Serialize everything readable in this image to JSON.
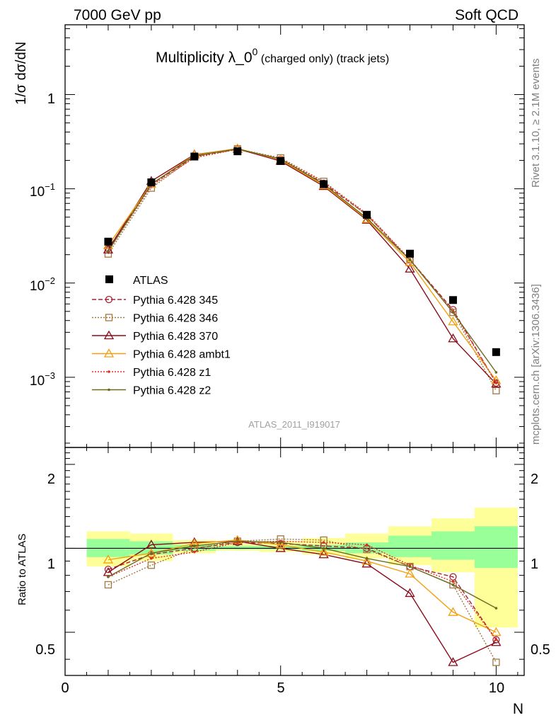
{
  "header": {
    "left": "7000 GeV pp",
    "right": "Soft QCD",
    "title_main": "Multiplicity λ_0",
    "title_sup": "0",
    "title_small": " (charged only) (track jets)",
    "analysis": "ATLAS_2011_I919017",
    "side_top": "Rivet 3.1.10, ≥ 2.1M events",
    "side_bottom": "mcplots.cern.ch [arXiv:1306.3436]"
  },
  "axes": {
    "ylabel_main": "1/σ dσ/dN",
    "ylabel_ratio": "Ratio to ATLAS",
    "xlabel": "N",
    "x_ticks": [
      "0",
      "5",
      "10"
    ],
    "y_ticks_main": [
      "1",
      "10^-1",
      "10^-2",
      "10^-3"
    ],
    "y_ticks_ratio": [
      "2",
      "1",
      "0.5"
    ]
  },
  "chart_data": {
    "type": "line",
    "x": [
      1,
      2,
      3,
      4,
      5,
      6,
      7,
      8,
      9,
      10
    ],
    "xlim": [
      0,
      10.65
    ],
    "ylim_main": [
      0.00018,
      5.5
    ],
    "ylog_main": true,
    "ylim_ratio": [
      0.35,
      2.3
    ],
    "ylog_ratio": true,
    "data": {
      "name": "ATLAS",
      "color": "#000000",
      "values": [
        0.0275,
        0.117,
        0.22,
        0.25,
        0.197,
        0.112,
        0.053,
        0.0205,
        0.0066,
        0.00185
      ]
    },
    "band_inner": {
      "color": "#99ff99",
      "lo": [
        0.93,
        0.95,
        0.98,
        0.99,
        0.99,
        0.98,
        0.96,
        0.93,
        0.91,
        0.85
      ],
      "hi": [
        1.08,
        1.06,
        1.03,
        1.02,
        1.02,
        1.03,
        1.05,
        1.11,
        1.15,
        1.2
      ]
    },
    "band_outer": {
      "color": "#ffff99",
      "lo": [
        0.86,
        0.9,
        0.96,
        0.98,
        0.97,
        0.95,
        0.92,
        0.87,
        0.82,
        0.52
      ],
      "hi": [
        1.15,
        1.13,
        1.07,
        1.04,
        1.06,
        1.09,
        1.13,
        1.2,
        1.28,
        1.4
      ]
    },
    "series": [
      {
        "name": "Pythia 6.428 345",
        "color": "#aa2233",
        "dash": "6,3",
        "marker": "circle",
        "ratio": [
          0.84,
          0.95,
          1.0,
          1.05,
          1.04,
          1.02,
          1.0,
          0.86,
          0.79,
          0.47
        ]
      },
      {
        "name": "Pythia 6.428 346",
        "color": "#a07840",
        "dash": "2,2",
        "marker": "square",
        "ratio": [
          0.74,
          0.87,
          1.0,
          1.06,
          1.08,
          1.07,
          0.99,
          0.86,
          0.74,
          0.39
        ]
      },
      {
        "name": "Pythia 6.428 370",
        "color": "#8b0a1a",
        "dash": "",
        "marker": "triangle",
        "ratio": [
          0.82,
          1.03,
          1.05,
          1.06,
          1.0,
          0.95,
          0.88,
          0.69,
          0.39,
          0.46
        ]
      },
      {
        "name": "Pythia 6.428 ambt1",
        "color": "#f0a010",
        "dash": "",
        "marker": "triangle",
        "ratio": [
          0.91,
          0.96,
          1.04,
          1.07,
          1.03,
          0.97,
          0.9,
          0.81,
          0.59,
          0.5
        ]
      },
      {
        "name": "Pythia 6.428 z1",
        "color": "#e0301e",
        "dash": "2,2",
        "marker": "dot",
        "ratio": [
          0.79,
          0.92,
          0.97,
          1.05,
          1.06,
          1.05,
          1.03,
          0.87,
          0.76,
          0.47
        ]
      },
      {
        "name": "Pythia 6.428 z2",
        "color": "#6b6b1f",
        "dash": "",
        "marker": "dot",
        "ratio": [
          0.79,
          0.96,
          1.02,
          1.06,
          1.05,
          1.0,
          0.92,
          0.86,
          0.74,
          0.61
        ]
      }
    ]
  }
}
